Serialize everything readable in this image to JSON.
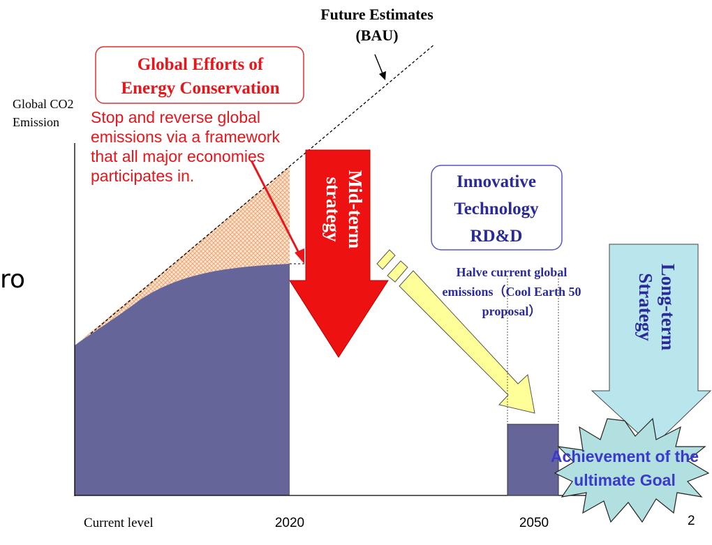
{
  "bau_label": {
    "lines": [
      "Future Estimates",
      "(BAU)"
    ]
  },
  "efforts_box": {
    "lines": [
      "Global Efforts of",
      "Energy Conservation"
    ]
  },
  "y_axis_label": {
    "lines": [
      "Global CO2",
      "Emission"
    ]
  },
  "efforts_note": {
    "lines": [
      "Stop and reverse global",
      "emissions via a framework",
      "that all major economies",
      "participates in."
    ]
  },
  "mid_term": {
    "lines": [
      "Mid-term",
      "strategy"
    ]
  },
  "innovation_box": {
    "lines": [
      "Innovative",
      "Technology",
      "RD&D"
    ]
  },
  "halve_note": {
    "lines": [
      "Halve current global",
      "emissions（Cool Earth 50",
      "proposal）"
    ]
  },
  "long_term": {
    "lines": [
      "Long-term",
      "Strategy"
    ]
  },
  "goal": {
    "lines": [
      "Achievement of the",
      "ultimate Goal"
    ]
  },
  "x_labels": [
    "Current level",
    "2020",
    "2050"
  ],
  "page_number": "2",
  "side_fragment": "ro"
}
